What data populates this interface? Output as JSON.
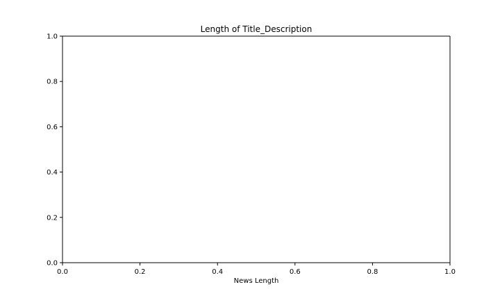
{
  "chart_data": {
    "type": "line",
    "title": "Length of Title_Description",
    "xlabel": "News Length",
    "ylabel": "",
    "xlim": [
      0.0,
      1.0
    ],
    "ylim": [
      0.0,
      1.0
    ],
    "x_ticks": [
      0.0,
      0.2,
      0.4,
      0.6,
      0.8,
      1.0
    ],
    "y_ticks": [
      0.0,
      0.2,
      0.4,
      0.6,
      0.8,
      1.0
    ],
    "x_tick_labels": [
      "0.0",
      "0.2",
      "0.4",
      "0.6",
      "0.8",
      "1.0"
    ],
    "y_tick_labels": [
      "0.0",
      "0.2",
      "0.4",
      "0.6",
      "0.8",
      "1.0"
    ],
    "series": [],
    "grid": false,
    "legend": "none"
  }
}
